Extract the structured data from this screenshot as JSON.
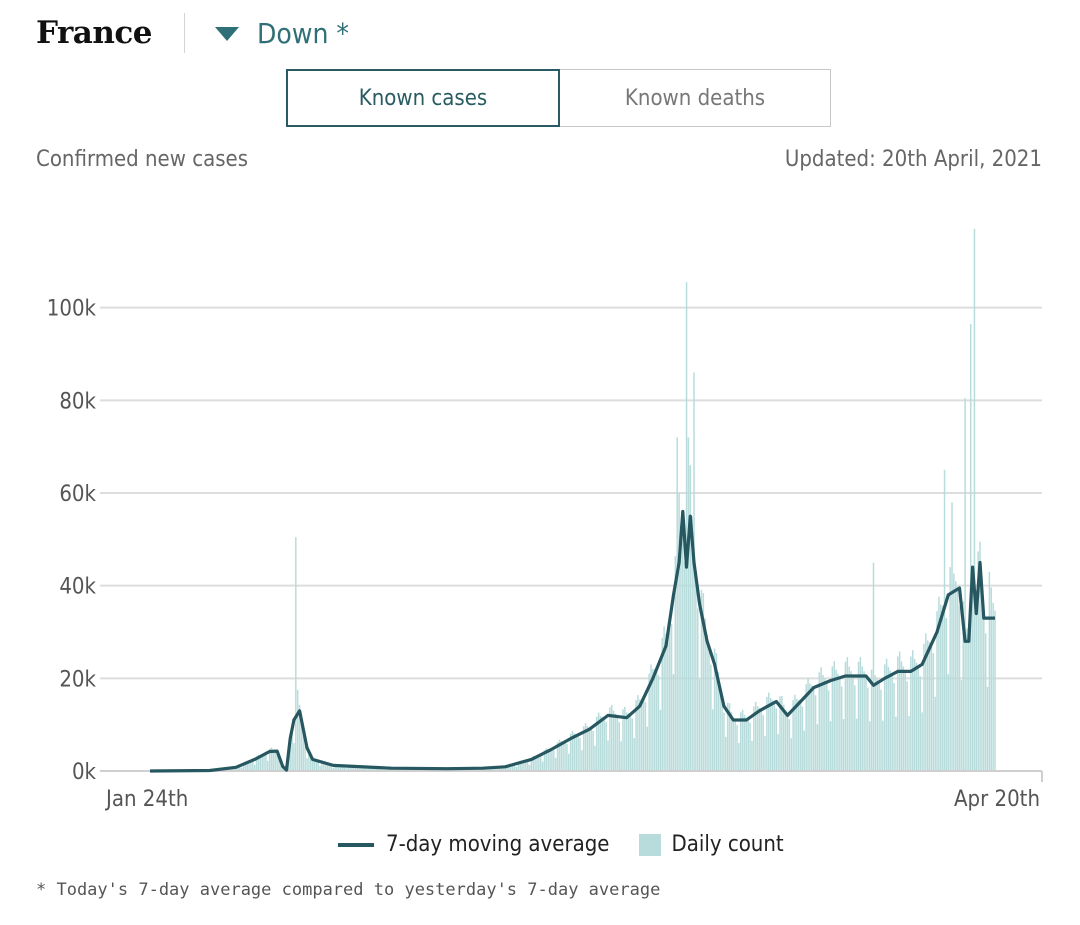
{
  "header": {
    "country": "France",
    "trend_label": "Down *"
  },
  "tabs": [
    {
      "label": "Known cases",
      "active": true
    },
    {
      "label": "Known deaths",
      "active": false
    }
  ],
  "subtitle_left": "Confirmed new cases",
  "updated_label": "Updated: 20th April, 2021",
  "legend": {
    "line_label": "7-day moving average",
    "bar_label": "Daily count"
  },
  "footnote": "* Today's 7-day average compared to yesterday's 7-day average",
  "colors": {
    "accent": "#2f7078",
    "line": "#275760",
    "bars": "#b7dcdb",
    "grid": "#dddddd"
  },
  "chart_data": {
    "type": "bar+line",
    "x_start_label": "Jan 24th",
    "x_end_label": "Apr 20th",
    "y_ticks": [
      "0k",
      "20k",
      "40k",
      "60k",
      "80k",
      "100k"
    ],
    "ylim": [
      0,
      120000
    ],
    "date_range": [
      "2020-01-24",
      "2021-04-20"
    ],
    "moving_average_keypoints": [
      [
        "2020-01-24",
        0
      ],
      [
        "2020-02-25",
        100
      ],
      [
        "2020-03-10",
        800
      ],
      [
        "2020-03-20",
        2500
      ],
      [
        "2020-03-28",
        4200
      ],
      [
        "2020-04-01",
        4300
      ],
      [
        "2020-04-04",
        1000
      ],
      [
        "2020-04-06",
        200
      ],
      [
        "2020-04-08",
        7000
      ],
      [
        "2020-04-10",
        11000
      ],
      [
        "2020-04-13",
        13000
      ],
      [
        "2020-04-17",
        5000
      ],
      [
        "2020-04-20",
        2500
      ],
      [
        "2020-05-01",
        1200
      ],
      [
        "2020-06-01",
        600
      ],
      [
        "2020-07-01",
        500
      ],
      [
        "2020-07-20",
        600
      ],
      [
        "2020-08-01",
        900
      ],
      [
        "2020-08-15",
        2500
      ],
      [
        "2020-08-25",
        4500
      ],
      [
        "2020-09-05",
        7000
      ],
      [
        "2020-09-15",
        9000
      ],
      [
        "2020-09-25",
        12000
      ],
      [
        "2020-10-05",
        11500
      ],
      [
        "2020-10-12",
        14000
      ],
      [
        "2020-10-19",
        20000
      ],
      [
        "2020-10-26",
        27000
      ],
      [
        "2020-10-30",
        38000
      ],
      [
        "2020-11-02",
        45000
      ],
      [
        "2020-11-04",
        56000
      ],
      [
        "2020-11-06",
        44000
      ],
      [
        "2020-11-08",
        55000
      ],
      [
        "2020-11-10",
        45000
      ],
      [
        "2020-11-13",
        36000
      ],
      [
        "2020-11-17",
        28000
      ],
      [
        "2020-11-21",
        23000
      ],
      [
        "2020-11-26",
        14000
      ],
      [
        "2020-12-01",
        11000
      ],
      [
        "2020-12-08",
        11000
      ],
      [
        "2020-12-15",
        13000
      ],
      [
        "2020-12-24",
        15000
      ],
      [
        "2020-12-30",
        12000
      ],
      [
        "2021-01-06",
        15000
      ],
      [
        "2021-01-13",
        18000
      ],
      [
        "2021-01-22",
        19500
      ],
      [
        "2021-01-30",
        20500
      ],
      [
        "2021-02-10",
        20500
      ],
      [
        "2021-02-14",
        18500
      ],
      [
        "2021-02-20",
        20000
      ],
      [
        "2021-02-27",
        21500
      ],
      [
        "2021-03-06",
        21500
      ],
      [
        "2021-03-12",
        23000
      ],
      [
        "2021-03-20",
        30000
      ],
      [
        "2021-03-26",
        38000
      ],
      [
        "2021-04-01",
        39500
      ],
      [
        "2021-04-04",
        28000
      ],
      [
        "2021-04-06",
        28000
      ],
      [
        "2021-04-08",
        44000
      ],
      [
        "2021-04-10",
        34000
      ],
      [
        "2021-04-12",
        45000
      ],
      [
        "2021-04-14",
        33000
      ],
      [
        "2021-04-18",
        33000
      ],
      [
        "2021-04-20",
        33000
      ]
    ],
    "daily_spikes": [
      [
        "2020-04-11",
        50500
      ],
      [
        "2020-04-12",
        17500
      ],
      [
        "2020-11-01",
        72000
      ],
      [
        "2020-11-02",
        60000
      ],
      [
        "2020-11-06",
        105500
      ],
      [
        "2020-11-07",
        72000
      ],
      [
        "2020-11-10",
        86000
      ],
      [
        "2021-02-14",
        45000
      ],
      [
        "2021-03-24",
        65000
      ],
      [
        "2021-03-28",
        58000
      ],
      [
        "2021-04-04",
        80500
      ],
      [
        "2021-04-07",
        96500
      ],
      [
        "2021-04-09",
        117000
      ],
      [
        "2021-04-17",
        43000
      ]
    ]
  }
}
